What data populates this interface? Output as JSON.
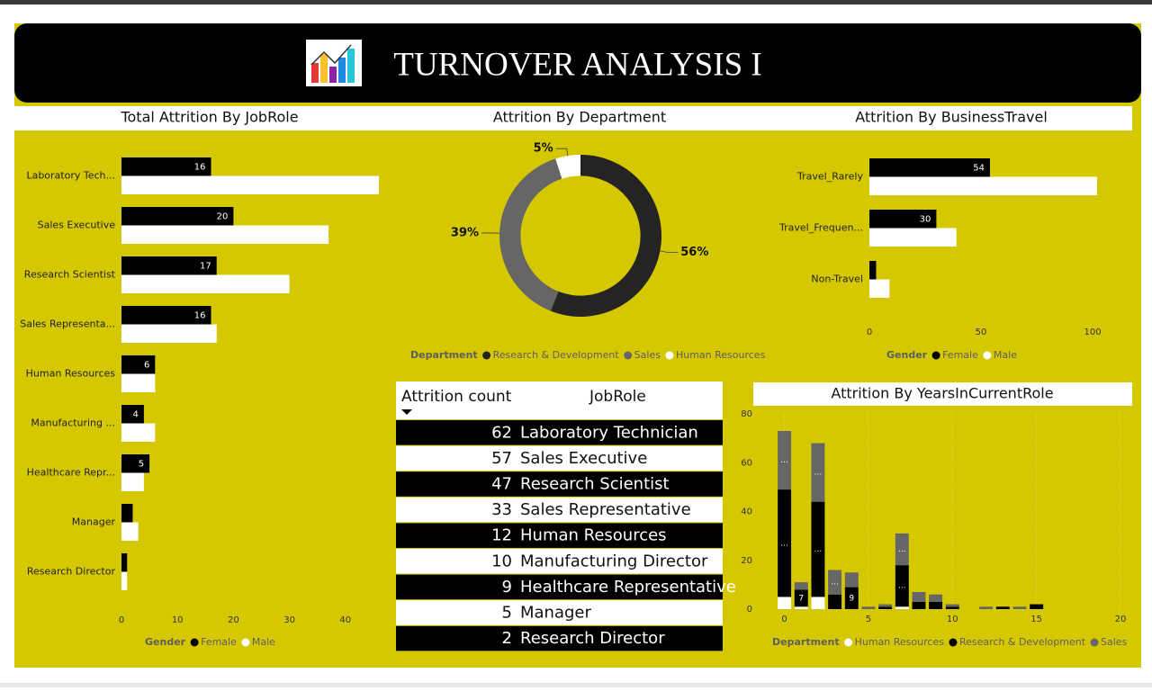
{
  "header": {
    "title": "TURNOVER ANALYSIS I"
  },
  "chart_data": [
    {
      "type": "bar",
      "orientation": "horizontal",
      "title": "Total Attrition By JobRole",
      "categories": [
        "Laboratory Tech...",
        "Sales Executive",
        "Research Scientist",
        "Sales Representa...",
        "Human Resources",
        "Manufacturing ...",
        "Healthcare Repr...",
        "Manager",
        "Research Director"
      ],
      "series": [
        {
          "name": "Female",
          "color": "#000000",
          "values": [
            16,
            20,
            17,
            16,
            6,
            4,
            5,
            2,
            1
          ],
          "value_labels": [
            "16",
            "20",
            "17",
            "16",
            "6",
            "4",
            "5",
            null,
            null
          ]
        },
        {
          "name": "Male",
          "color": "#ffffff",
          "values": [
            46,
            37,
            30,
            17,
            6,
            6,
            4,
            3,
            1
          ]
        }
      ],
      "xlim": [
        0,
        47
      ],
      "xticks": [
        0,
        10,
        20,
        30,
        40
      ],
      "legend_title": "Gender",
      "legend": "bottom"
    },
    {
      "type": "pie",
      "title": "Attrition By Department",
      "categories": [
        "Research & Development",
        "Sales",
        "Human Resources"
      ],
      "values": [
        56,
        39,
        5
      ],
      "value_labels": [
        "56%",
        "39%",
        "5%"
      ],
      "colors": [
        "#252423",
        "#666666",
        "#ffffff"
      ],
      "hole": 0.74,
      "legend_title": "Department",
      "legend": "bottom"
    },
    {
      "type": "bar",
      "orientation": "horizontal",
      "title": "Attrition By BusinessTravel",
      "categories": [
        "Travel_Rarely",
        "Travel_Frequen...",
        "Non-Travel"
      ],
      "series": [
        {
          "name": "Female",
          "color": "#000000",
          "values": [
            54,
            30,
            3
          ],
          "value_labels": [
            "54",
            "30",
            null
          ]
        },
        {
          "name": "Male",
          "color": "#ffffff",
          "values": [
            102,
            39,
            9
          ]
        }
      ],
      "xlim": [
        0,
        102
      ],
      "xticks": [
        0,
        50,
        100
      ],
      "legend_title": "Gender",
      "legend": "bottom"
    },
    {
      "type": "bar",
      "orientation": "vertical",
      "stacked": true,
      "title": "Attrition By YearsInCurrentRole",
      "x": [
        0,
        1,
        2,
        3,
        4,
        5,
        6,
        7,
        8,
        9,
        10,
        12,
        13,
        14,
        15
      ],
      "series": [
        {
          "name": "Human Resources",
          "color": "#ffffff",
          "values": [
            5,
            1,
            5,
            0,
            0,
            0,
            0,
            1,
            0,
            0,
            0,
            0,
            0,
            0,
            0
          ]
        },
        {
          "name": "Research & Development",
          "color": "#000000",
          "values": [
            44,
            7,
            39,
            6,
            9,
            0,
            1,
            17,
            3,
            3,
            1,
            0,
            1,
            0,
            2
          ],
          "value_labels": [
            "...",
            "7",
            "...",
            null,
            "9",
            null,
            null,
            "...",
            null,
            null,
            null,
            null,
            null,
            null,
            null
          ]
        },
        {
          "name": "Sales",
          "color": "#666666",
          "values": [
            24,
            3,
            24,
            10,
            6,
            1,
            1,
            13,
            4,
            3,
            1,
            1,
            0,
            1,
            0
          ],
          "value_labels": [
            "...",
            null,
            "...",
            "...",
            null,
            null,
            null,
            "...",
            null,
            null,
            null,
            null,
            null,
            null,
            null
          ]
        }
      ],
      "xlim": [
        -1.8,
        20
      ],
      "xticks": [
        0,
        5,
        10,
        15,
        20
      ],
      "ylim": [
        0,
        80
      ],
      "yticks": [
        0,
        20,
        40,
        60,
        80
      ],
      "grid": true,
      "legend_title": "Department",
      "legend": "bottom"
    }
  ],
  "table": {
    "columns": [
      "Attrition count",
      "JobRole"
    ],
    "rows": [
      [
        62,
        "Laboratory Technician"
      ],
      [
        57,
        "Sales Executive"
      ],
      [
        47,
        "Research Scientist"
      ],
      [
        33,
        "Sales Representative"
      ],
      [
        12,
        "Human Resources"
      ],
      [
        10,
        "Manufacturing Director"
      ],
      [
        9,
        "Healthcare Representative"
      ],
      [
        5,
        "Manager"
      ],
      [
        2,
        "Research Director"
      ]
    ]
  }
}
